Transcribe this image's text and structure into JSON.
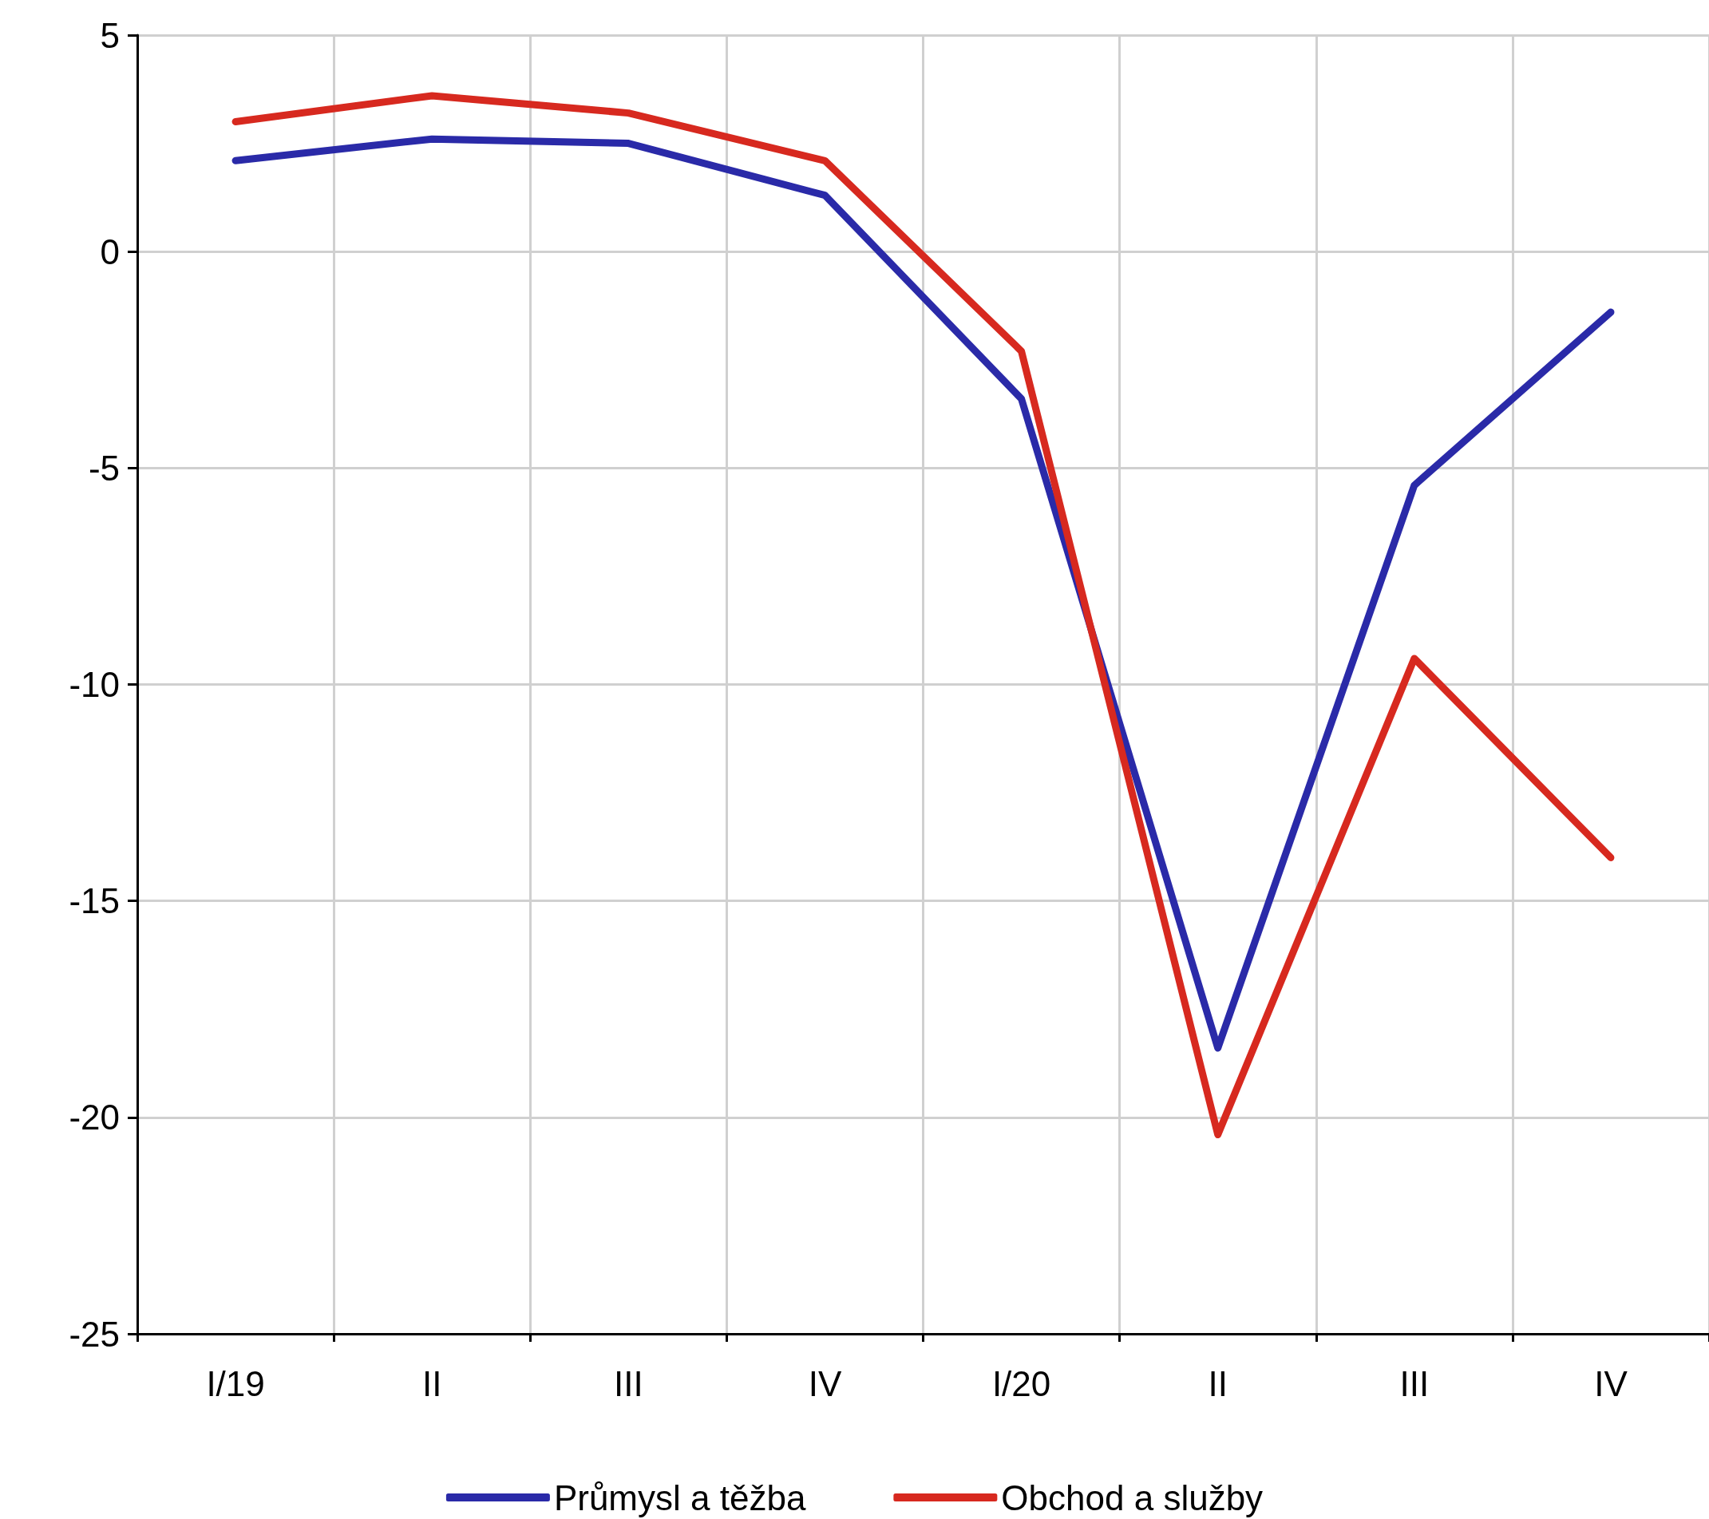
{
  "chart_data": {
    "type": "line",
    "categories": [
      "I/19",
      "II",
      "III",
      "IV",
      "I/20",
      "II",
      "III",
      "IV"
    ],
    "series": [
      {
        "name": "Průmysl a těžba",
        "color": "#2a2aa8",
        "values": [
          2.1,
          2.6,
          2.5,
          1.3,
          -3.4,
          -18.4,
          -5.4,
          -1.4
        ]
      },
      {
        "name": "Obchod a služby",
        "color": "#d7291f",
        "values": [
          3.0,
          3.6,
          3.2,
          2.1,
          -2.3,
          -20.4,
          -9.4,
          -14.0
        ]
      }
    ],
    "ylim": [
      -25,
      5
    ],
    "yticks": [
      -25,
      -20,
      -15,
      -10,
      -5,
      0,
      5
    ],
    "grid": true,
    "legend": "bottom",
    "marker": "none",
    "line_style": "solid"
  }
}
